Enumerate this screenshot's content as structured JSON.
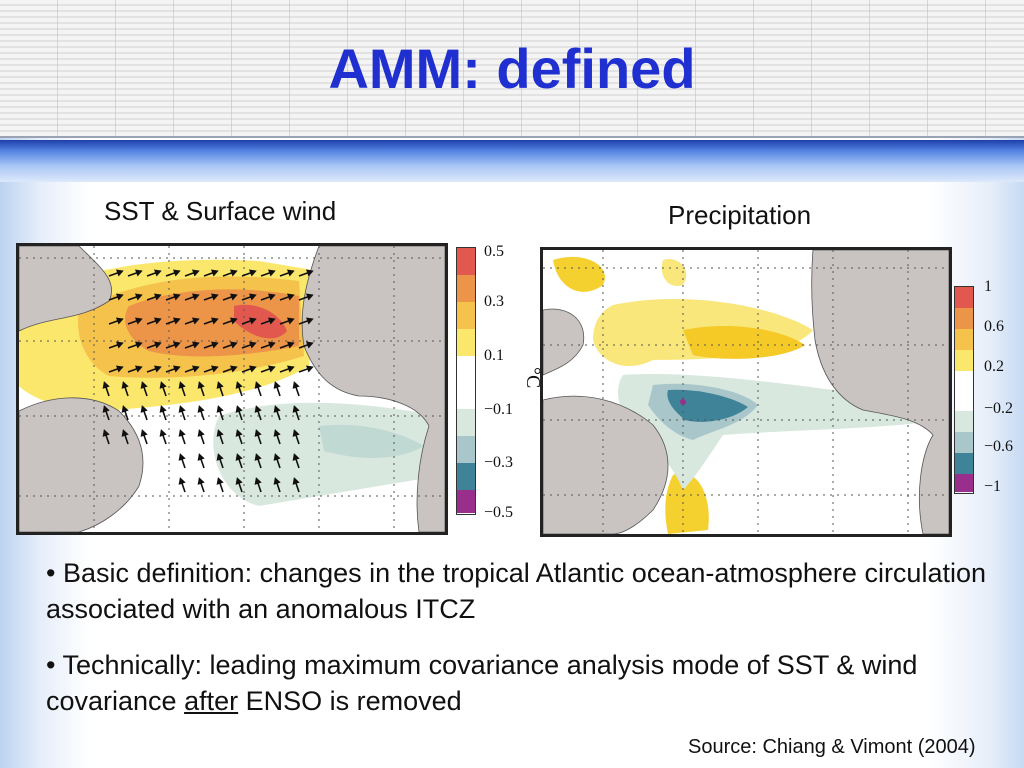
{
  "slide": {
    "title": "AMM: defined",
    "panels": {
      "sst": {
        "label": "SST & Surface wind",
        "colorbar": {
          "ticks": [
            "0.5",
            "0.3",
            "0.1",
            "−0.1",
            "−0.3",
            "−0.5"
          ],
          "unit": "°C"
        }
      },
      "precip": {
        "label": "Precipitation",
        "colorbar": {
          "ticks": [
            "1",
            "0.6",
            "0.2",
            "−0.2",
            "−0.6",
            "−1"
          ]
        }
      }
    },
    "colors": {
      "positive": [
        "#e2584f",
        "#ec9548",
        "#f5c24b",
        "#fbe76c"
      ],
      "neutral": "#ffffff",
      "negative": [
        "#d8e8de",
        "#a9c7cb",
        "#3f8399",
        "#9a2e8c"
      ],
      "land": "#c9c3c1",
      "title": "#1f2fd0"
    },
    "bullets": [
      {
        "prefix": "• ",
        "text": "Basic definition: changes in the tropical Atlantic ocean-atmosphere circulation associated with an anomalous ITCZ"
      },
      {
        "prefix": "• ",
        "before": "Technically: leading maximum covariance analysis mode of SST & wind covariance ",
        "underlined": "after",
        "after": " ENSO is removed"
      }
    ],
    "source": "Source: Chiang & Vimont (2004)"
  }
}
